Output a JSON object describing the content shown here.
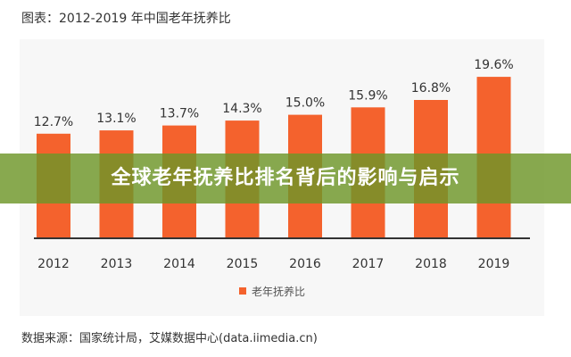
{
  "chart_data": {
    "type": "bar",
    "title": "图表：2012-2019 年中国老年抚养比",
    "categories": [
      "2012",
      "2013",
      "2014",
      "2015",
      "2016",
      "2017",
      "2018",
      "2019"
    ],
    "series": [
      {
        "name": "老年抚养比",
        "values": [
          12.7,
          13.1,
          13.7,
          14.3,
          15.0,
          15.9,
          16.8,
          19.6
        ],
        "labels": [
          "12.7%",
          "13.1%",
          "13.7%",
          "14.3%",
          "15.0%",
          "15.9%",
          "16.8%",
          "19.6%"
        ]
      }
    ],
    "xlabel": "",
    "ylabel": "",
    "ylim": [
      0,
      22
    ],
    "grid": false,
    "legend": "bottom-center",
    "bar_color": "#f4622d"
  },
  "source_text": "数据来源：国家统计局，艾媒数据中心(data.iimedia.cn)",
  "overlay": {
    "headline": "全球老年抚养比排名背后的影响与启示"
  },
  "colors": {
    "bar": "#f4622d",
    "axis": "#333333",
    "frame_bg": "#f7f7f7",
    "overlay_band": "#6e9628"
  }
}
